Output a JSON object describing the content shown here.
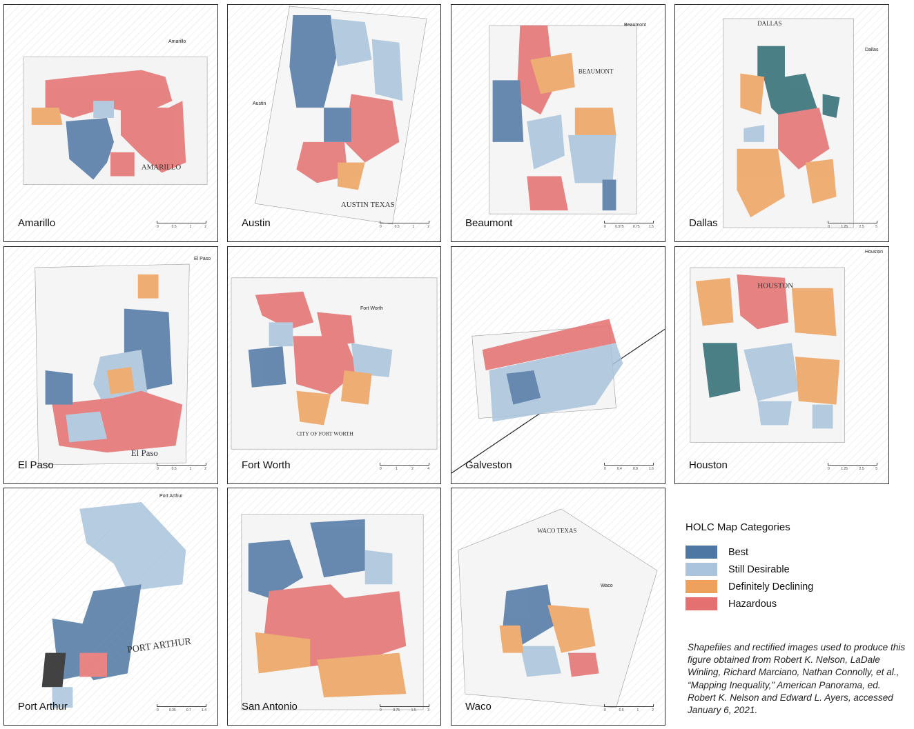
{
  "panels": [
    {
      "id": "amarillo",
      "label": "Amarillo",
      "corner_label": "Amarillo",
      "scale_ticks": [
        "0",
        "0.5",
        "1",
        "2"
      ]
    },
    {
      "id": "austin",
      "label": "Austin",
      "corner_label": "Austin",
      "scale_ticks": [
        "0",
        "0.5",
        "1",
        "2"
      ]
    },
    {
      "id": "beaumont",
      "label": "Beaumont",
      "corner_label": "Beaumont",
      "scale_ticks": [
        "0",
        "0.375",
        "0.75",
        "1.5"
      ]
    },
    {
      "id": "dallas",
      "label": "Dallas",
      "corner_label": "Dallas",
      "scale_ticks": [
        "0",
        "1.25",
        "2.5",
        "5"
      ]
    },
    {
      "id": "elpaso",
      "label": "El Paso",
      "corner_label": "El Paso",
      "scale_ticks": [
        "0",
        "0.5",
        "1",
        "2"
      ]
    },
    {
      "id": "fortworth",
      "label": "Fort Worth",
      "corner_label": "Fort Worth",
      "scale_ticks": [
        "0",
        "1",
        "2",
        "4"
      ]
    },
    {
      "id": "galveston",
      "label": "Galveston",
      "corner_label": "",
      "scale_ticks": [
        "0",
        "0.4",
        "0.8",
        "1.6"
      ]
    },
    {
      "id": "houston",
      "label": "Houston",
      "corner_label": "Houston",
      "scale_ticks": [
        "0",
        "1.25",
        "2.5",
        "5"
      ]
    },
    {
      "id": "portarthur",
      "label": "Port Arthur",
      "corner_label": "Port Arthur",
      "scale_ticks": [
        "0",
        "0.35",
        "0.7",
        "1.4"
      ]
    },
    {
      "id": "sanantonio",
      "label": "San Antonio",
      "corner_label": "",
      "scale_ticks": [
        "0",
        "0.75",
        "1.5",
        "3"
      ]
    },
    {
      "id": "waco",
      "label": "Waco",
      "corner_label": "Waco",
      "scale_ticks": [
        "0",
        "0.5",
        "1",
        "2"
      ]
    }
  ],
  "legend": {
    "title": "HOLC Map Categories",
    "items": [
      {
        "label": "Best",
        "color": "#4f77a3"
      },
      {
        "label": "Still Desirable",
        "color": "#a9c4dc"
      },
      {
        "label": "Definitely Declining",
        "color": "#eda15c"
      },
      {
        "label": "Hazardous",
        "color": "#e4706f"
      }
    ]
  },
  "source_note": "Shapefiles and rectified images used to produce this figure obtained from Robert K. Nelson, LaDale Winling, Richard Marciano, Nathan Connolly, et al., “Mapping Inequality,” American Panorama, ed. Robert K. Nelson and Edward L. Ayers, accessed January 6, 2021."
}
